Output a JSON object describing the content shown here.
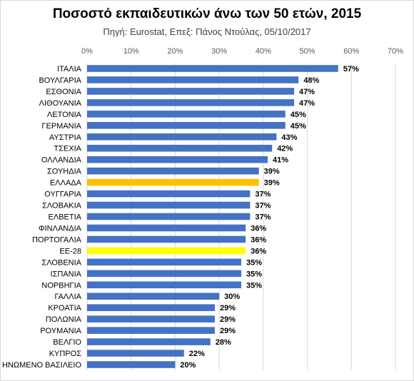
{
  "title": "Ποσοστό  εκπαιδευτικών άνω των 50 ετών, 2015",
  "subtitle": "Πηγή: Eurostat, Επεξ: Πάνος Ντούλας, 05/10/2017",
  "chart_data": {
    "type": "bar",
    "orientation": "horizontal",
    "title": "Ποσοστό  εκπαιδευτικών άνω των 50 ετών, 2015",
    "subtitle": "Πηγή: Eurostat, Επεξ: Πάνος Ντούλας, 05/10/2017",
    "xlim": [
      0,
      70
    ],
    "x_ticks": [
      0,
      10,
      20,
      30,
      40,
      50,
      60,
      70
    ],
    "x_tick_suffix": "%",
    "x_axis_position": "top",
    "grid": true,
    "legend": "none",
    "default_color": "#4472c4",
    "categories": [
      "ΙΤΑΛΙΑ",
      "ΒΟΥΛΓΑΡΙΑ",
      "ΕΣΘΟΝΙΑ",
      "ΛΙΘΟΥΑΝΙΑ",
      "ΛΕΤΟΝΙΑ",
      "ΓΕΡΜΑΝΙΑ",
      "ΑΥΣΤΡΙΑ",
      "ΤΣΕΧΙΑ",
      "ΟΛΛΑΝΔΙΑ",
      "ΣΟΥΗΔΙΑ",
      "ΕΛΛΑΔΑ",
      "ΟΥΓΓΑΡΙΑ",
      "ΣΛΟΒΑΚΙΑ",
      "ΕΛΒΕΤΙΑ",
      "ΦΙΝΛΑΝΔΙΑ",
      "ΠΟΡΤΟΓΑΛΙΑ",
      "ΕΕ-28",
      "ΣΛΟΒΕΝΙΑ",
      "ΙΣΠΑΝΙΑ",
      "ΝΟΡΒΗΓΙΑ",
      "ΓΑΛΛΙΑ",
      "ΚΡΟΑΤΙΑ",
      "ΠΟΛΩΝΙΑ",
      "ΡΟΥΜΑΝΙΑ",
      "ΒΕΛΓΙΟ",
      "ΚΥΠΡΟΣ",
      "ΗΝΩΜΕΝΟ ΒΑΣΙΛΕΙΟ"
    ],
    "values": [
      57.0,
      48.0,
      47.0,
      47.0,
      45.0,
      45.0,
      43.0,
      42.0,
      41.0,
      39.0,
      39.0,
      37.0,
      37.0,
      37.0,
      36.0,
      36.0,
      36.0,
      35.0,
      35.0,
      35.0,
      30.0,
      29.0,
      29.0,
      29.0,
      28.0,
      22.0,
      20.0
    ],
    "data_labels": [
      "57%",
      "48%",
      "47%",
      "47%",
      "45%",
      "45%",
      "43%",
      "42%",
      "41%",
      "39%",
      "39%",
      "37%",
      "37%",
      "37%",
      "36%",
      "36%",
      "36%",
      "35%",
      "35%",
      "35%",
      "30%",
      "29%",
      "29%",
      "29%",
      "28%",
      "22%",
      "20%"
    ],
    "highlights": [
      {
        "category": "ΕΛΛΑΔΑ",
        "color": "#ffc000"
      },
      {
        "category": "ΕΕ-28",
        "color": "#ffff00"
      }
    ]
  }
}
